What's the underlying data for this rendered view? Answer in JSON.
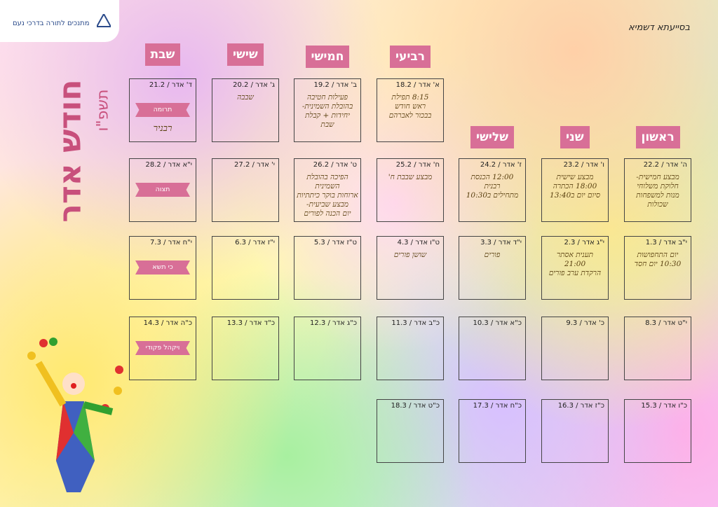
{
  "header": {
    "blessing": "בסייעתא דשמיא",
    "logo": "מתנכים לתורה בדרכי נעם",
    "title": "חודש אדר",
    "year": "תשפ\"ו"
  },
  "days": [
    "ראשון",
    "שני",
    "שלישי",
    "רביעי",
    "חמישי",
    "שישי",
    "שבת"
  ],
  "weeks": [
    [
      null,
      null,
      null,
      {
        "date": "א' אדר / 18.2",
        "lines": [
          "8:15 תפילת",
          "ראש חודש",
          "בבכור לאברהם"
        ]
      },
      {
        "date": "ב' אדר / 19.2",
        "lines": [
          "פעילות חטיבה",
          "בהובלת השמינית-",
          "יחידות + קבלת",
          "שבת"
        ]
      },
      {
        "date": "ג' אדר / 20.2",
        "lines": [
          "שבבה"
        ]
      },
      {
        "date": "ד' אדר / 21.2",
        "tag": "תרומה",
        "lines": [
          "רבניר"
        ]
      }
    ],
    [
      {
        "date": "ה' אדר / 22.2",
        "lines": [
          "מבצע חמישית-",
          "חלוקת משלוחי",
          "מנות למשפחות",
          "שכולות"
        ]
      },
      {
        "date": "ו' אדר / 23.2",
        "lines": [
          "מבצע שישית",
          "18:00 הכתרה",
          "סיום יום ב13:40"
        ]
      },
      {
        "date": "ז' אדר / 24.2",
        "lines": [
          "12:00 הכנסת",
          "רבנית",
          "מתחילים ב10:30"
        ]
      },
      {
        "date": "ח' אדר / 25.2",
        "lines": [
          "מבצע שבבת ח'"
        ]
      },
      {
        "date": "ט' אדר / 26.2",
        "lines": [
          "הפיכה בהובלת השמינית",
          "ארוחות בוקר כיתתיות",
          "מבצע שביעית-",
          "יום הכנה לפורים"
        ]
      },
      {
        "date": "י' אדר / 27.2"
      },
      {
        "date": "י\"א אדר / 28.2",
        "tag": "תצוה"
      }
    ],
    [
      {
        "date": "י\"ב אדר / 1.3",
        "lines": [
          "יום התחפושות",
          "10:30 יום חסד"
        ]
      },
      {
        "date": "י\"ג אדר / 2.3",
        "lines": [
          "תענית אסתר",
          "21:00",
          "הרקדת ערב פורים"
        ]
      },
      {
        "date": "י\"ד אדר / 3.3",
        "lines": [
          "פורים"
        ]
      },
      {
        "date": "ט\"ו אדר / 4.3",
        "lines": [
          "שושן פורים"
        ]
      },
      {
        "date": "ט\"ז אדר / 5.3"
      },
      {
        "date": "י\"ז אדר / 6.3"
      },
      {
        "date": "י\"ח אדר / 7.3",
        "tag": "כי תשא"
      }
    ],
    [
      {
        "date": "י\"ט אדר / 8.3"
      },
      {
        "date": "כ' אדר / 9.3"
      },
      {
        "date": "כ\"א אדר / 10.3"
      },
      {
        "date": "כ\"ב אדר / 11.3"
      },
      {
        "date": "כ\"ג אדר / 12.3"
      },
      {
        "date": "כ\"ד אדר / 13.3"
      },
      {
        "date": "כ\"ה אדר / 14.3",
        "tag": "ויקהל פקודי"
      }
    ],
    [
      {
        "date": "כ\"ו אדר / 15.3"
      },
      {
        "date": "כ\"ז אדר / 16.3"
      },
      {
        "date": "כ\"ח אדר / 17.3"
      },
      {
        "date": "כ\"ט אדר / 18.3"
      },
      null,
      null,
      null
    ]
  ]
}
